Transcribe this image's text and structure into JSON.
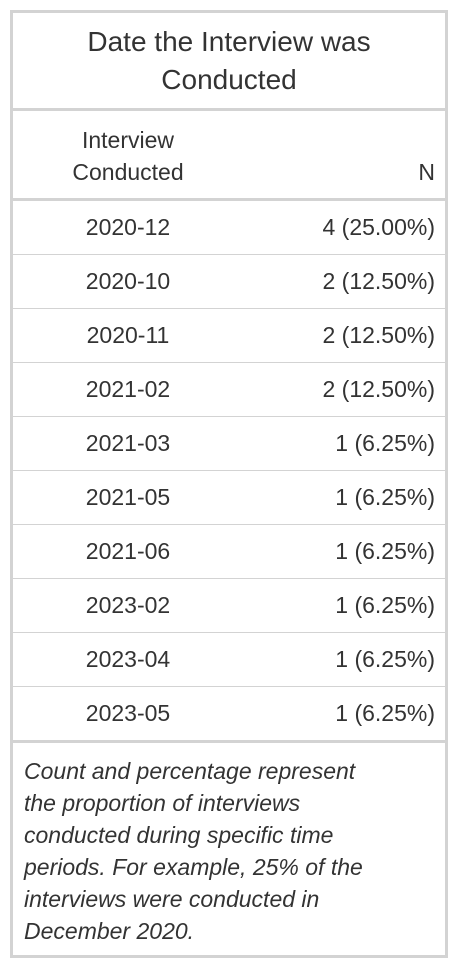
{
  "table": {
    "title_line1": "Date the Interview was",
    "title_line2": "Conducted",
    "header": {
      "col1_line1": "Interview",
      "col1_line2": "Conducted",
      "col2": "N"
    },
    "rows": [
      {
        "date": "2020-12",
        "n": "4 (25.00%)"
      },
      {
        "date": "2020-10",
        "n": "2 (12.50%)"
      },
      {
        "date": "2020-11",
        "n": "2 (12.50%)"
      },
      {
        "date": "2021-02",
        "n": "2 (12.50%)"
      },
      {
        "date": "2021-03",
        "n": "1 (6.25%)"
      },
      {
        "date": "2021-05",
        "n": "1 (6.25%)"
      },
      {
        "date": "2021-06",
        "n": "1 (6.25%)"
      },
      {
        "date": "2023-02",
        "n": "1 (6.25%)"
      },
      {
        "date": "2023-04",
        "n": "1 (6.25%)"
      },
      {
        "date": "2023-05",
        "n": "1 (6.25%)"
      }
    ],
    "footnote_lines": [
      "Count and percentage represent",
      "the proportion of interviews",
      "conducted during specific time",
      "periods. For example, 25% of the",
      "interviews were conducted in",
      "December 2020."
    ]
  }
}
